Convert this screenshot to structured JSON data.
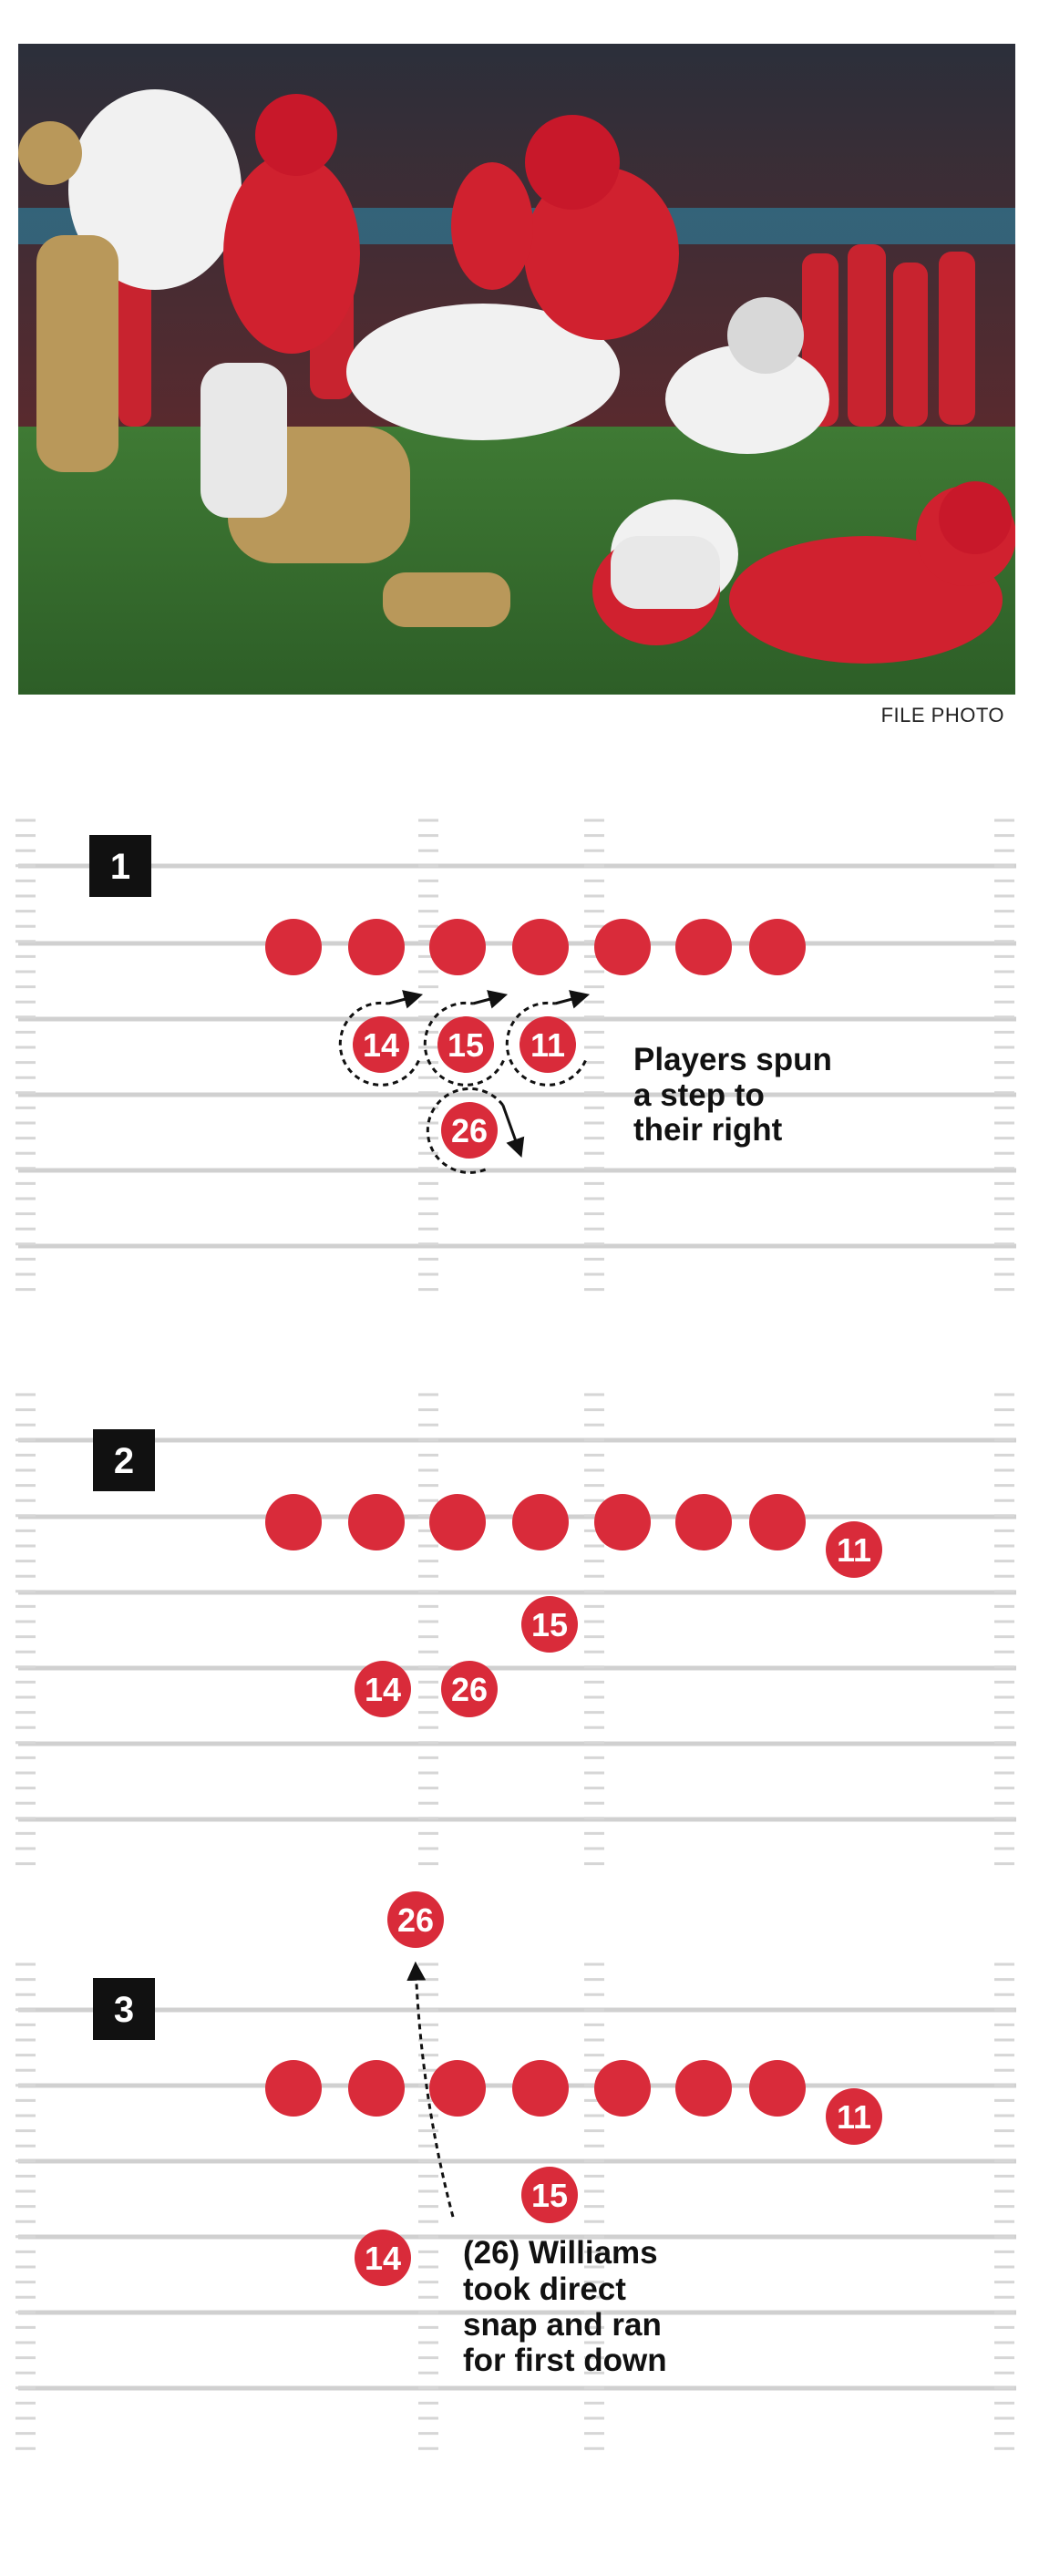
{
  "photo": {
    "credit": "FILE PHOTO"
  },
  "colors": {
    "player": "#d92b3a",
    "field_line": "#d0d0d0",
    "hash": "#d6d6d6",
    "text": "#111111",
    "badge": "#111111"
  },
  "panels": [
    {
      "id": "1",
      "linemen_count": 7,
      "players": [
        "14",
        "15",
        "11",
        "26"
      ],
      "caption": [
        "Players spun",
        "a step to",
        "their right"
      ]
    },
    {
      "id": "2",
      "linemen_count": 7,
      "players": [
        "11",
        "15",
        "14",
        "26"
      ],
      "caption": []
    },
    {
      "id": "3",
      "linemen_count": 7,
      "players": [
        "26",
        "11",
        "15",
        "14"
      ],
      "caption": [
        "(26) Williams",
        "took direct",
        "snap and ran",
        "for first down"
      ]
    }
  ]
}
